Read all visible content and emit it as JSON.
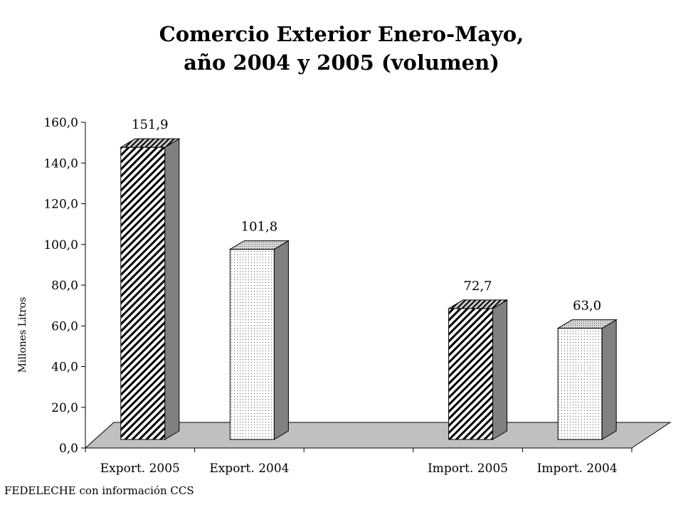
{
  "chart_data": {
    "type": "bar",
    "title_lines": [
      "Comercio Exterior Enero-Mayo,",
      "año 2004 y 2005 (volumen)"
    ],
    "ylabel": "Millones Litros",
    "xlabel": "",
    "ylim": [
      0,
      160
    ],
    "ytick_step": 20,
    "ytick_labels": [
      "0,0",
      "20,0",
      "40,0",
      "60,0",
      "80,0",
      "100,0",
      "120,0",
      "140,0",
      "160,0"
    ],
    "categories": [
      "Export. 2005",
      "Export. 2004",
      "",
      "Import. 2005",
      "Import. 2004"
    ],
    "bars": [
      {
        "category": "Export. 2005",
        "value": 151.9,
        "label": "151,9",
        "pattern": "hatch"
      },
      {
        "category": "Export. 2004",
        "value": 101.8,
        "label": "101,8",
        "pattern": "dots"
      },
      {
        "category": "Import. 2005",
        "value": 72.7,
        "label": "72,7",
        "pattern": "hatch"
      },
      {
        "category": "Import. 2004",
        "value": 63.0,
        "label": "63,0",
        "pattern": "dots"
      }
    ],
    "grid": false,
    "style": "3d-bars"
  },
  "colors": {
    "floor": "#c0c0c0",
    "bar_side": "#808080",
    "bar_outline": "#000000"
  },
  "source_note": "FEDELECHE con información CCS"
}
